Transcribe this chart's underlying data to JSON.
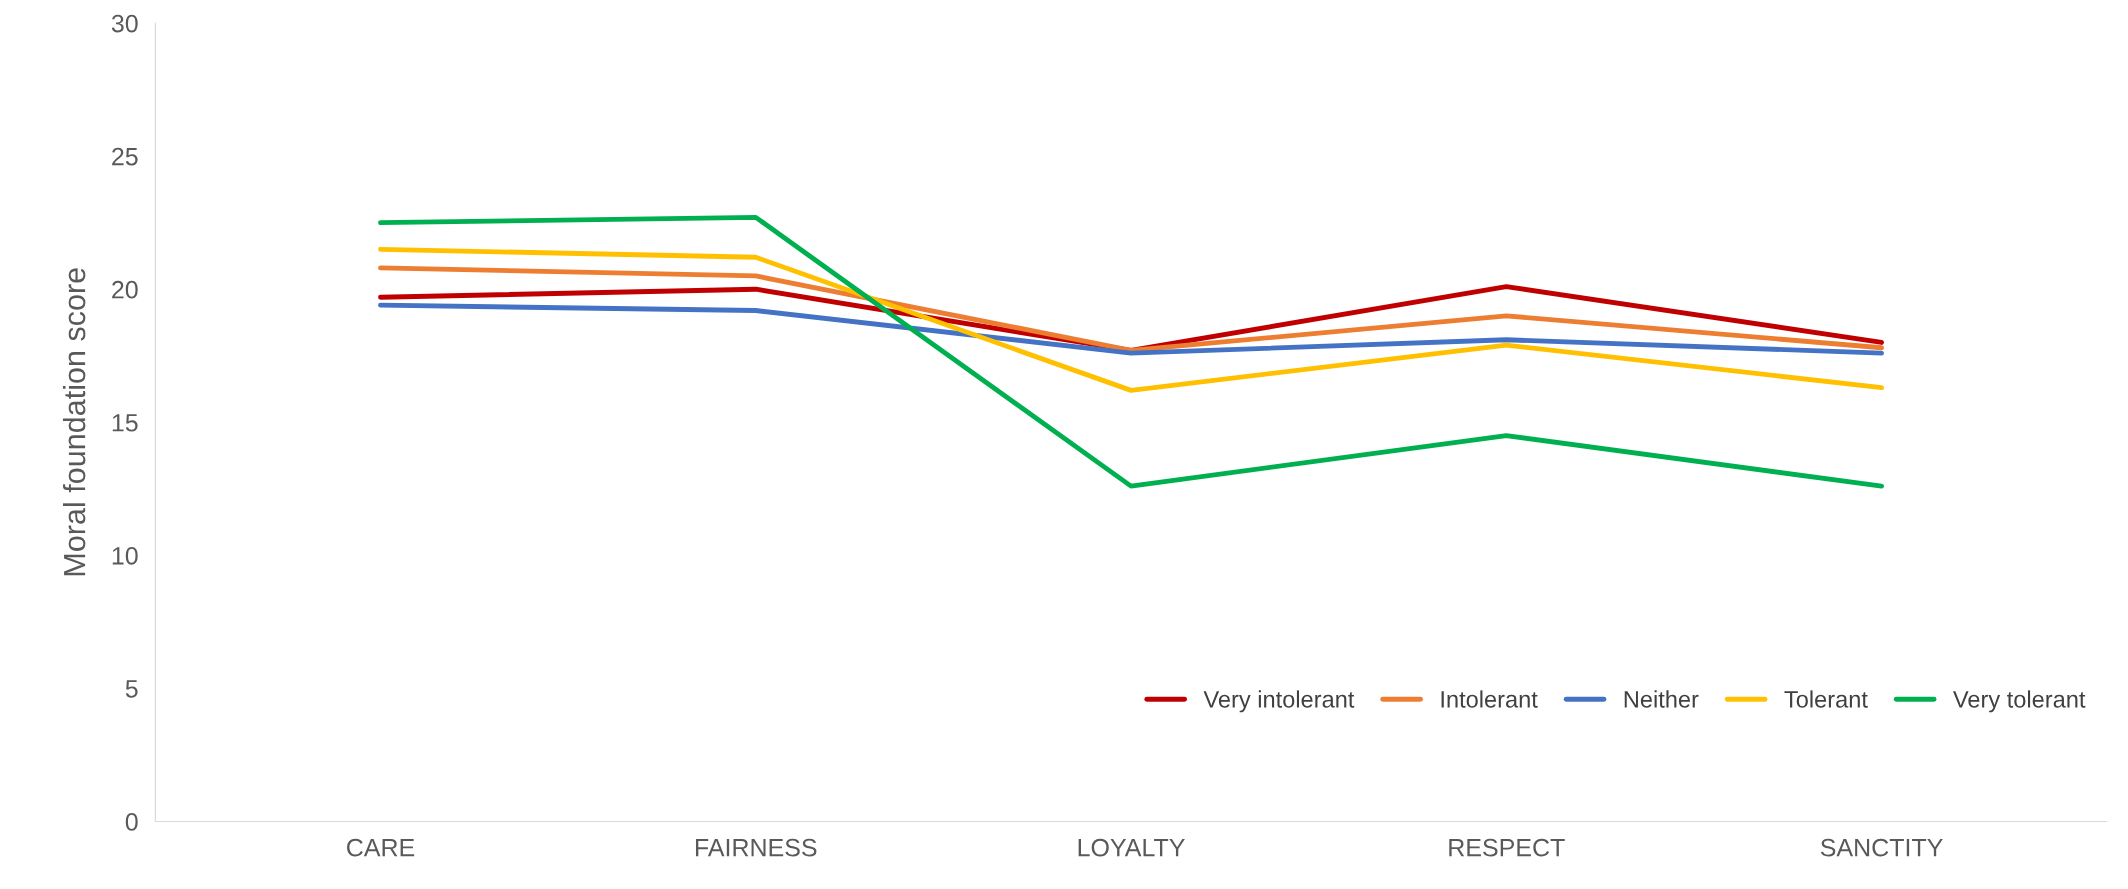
{
  "chart_data": {
    "type": "line",
    "ylabel": "Moral foundation score",
    "categories": [
      "CARE",
      "FAIRNESS",
      "LOYALTY",
      "RESPECT",
      "SANCTITY"
    ],
    "series": [
      {
        "name": "Very intolerant",
        "color": "#c00000",
        "values": [
          19.7,
          20.0,
          17.7,
          20.1,
          18.0
        ]
      },
      {
        "name": "Intolerant",
        "color": "#ed7d31",
        "values": [
          20.8,
          20.5,
          17.7,
          19.0,
          17.8
        ]
      },
      {
        "name": "Neither",
        "color": "#4472c4",
        "values": [
          19.4,
          19.2,
          17.6,
          18.1,
          17.6
        ]
      },
      {
        "name": "Tolerant",
        "color": "#ffc000",
        "values": [
          21.5,
          21.2,
          16.2,
          17.9,
          16.3
        ]
      },
      {
        "name": "Very tolerant",
        "color": "#00b050",
        "values": [
          22.5,
          22.7,
          12.6,
          14.5,
          12.6
        ]
      }
    ],
    "ylim": [
      0,
      30
    ],
    "yticks": [
      0,
      5,
      10,
      15,
      20,
      25,
      30
    ],
    "grid": false,
    "legend": "bottom right"
  }
}
